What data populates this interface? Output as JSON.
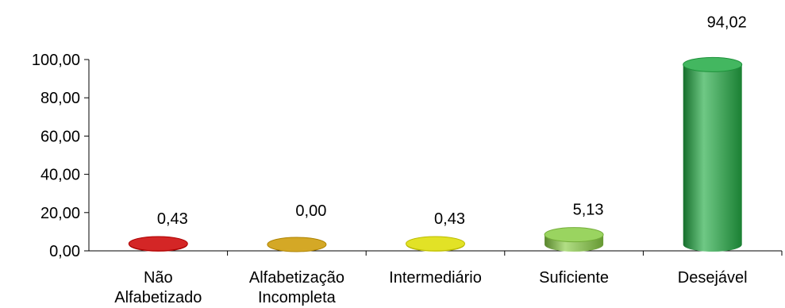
{
  "chart_data": {
    "type": "bar",
    "title": "",
    "xlabel": "",
    "ylabel": "",
    "categories": [
      [
        "Não",
        "Alfabetizado"
      ],
      [
        "Alfabetização",
        "Incompleta"
      ],
      [
        "Intermediário"
      ],
      [
        "Suficiente"
      ],
      [
        "Desejável"
      ]
    ],
    "values": [
      0.43,
      0.0,
      0.43,
      5.13,
      94.02
    ],
    "value_labels": [
      "0,43",
      "0,00",
      "0,43",
      "5,13",
      "94,02"
    ],
    "colors": [
      "#cc0000",
      "#cc9900",
      "#dddd00",
      "#88cc44",
      "#22aa44"
    ],
    "ylim": [
      0,
      100
    ],
    "y_ticks": [
      0,
      20,
      40,
      60,
      80,
      100
    ],
    "y_tick_labels": [
      "0,00",
      "20,00",
      "40,00",
      "60,00",
      "80,00",
      "100,00"
    ],
    "grid": false,
    "legend": "none",
    "style": "3d-cylinder"
  }
}
